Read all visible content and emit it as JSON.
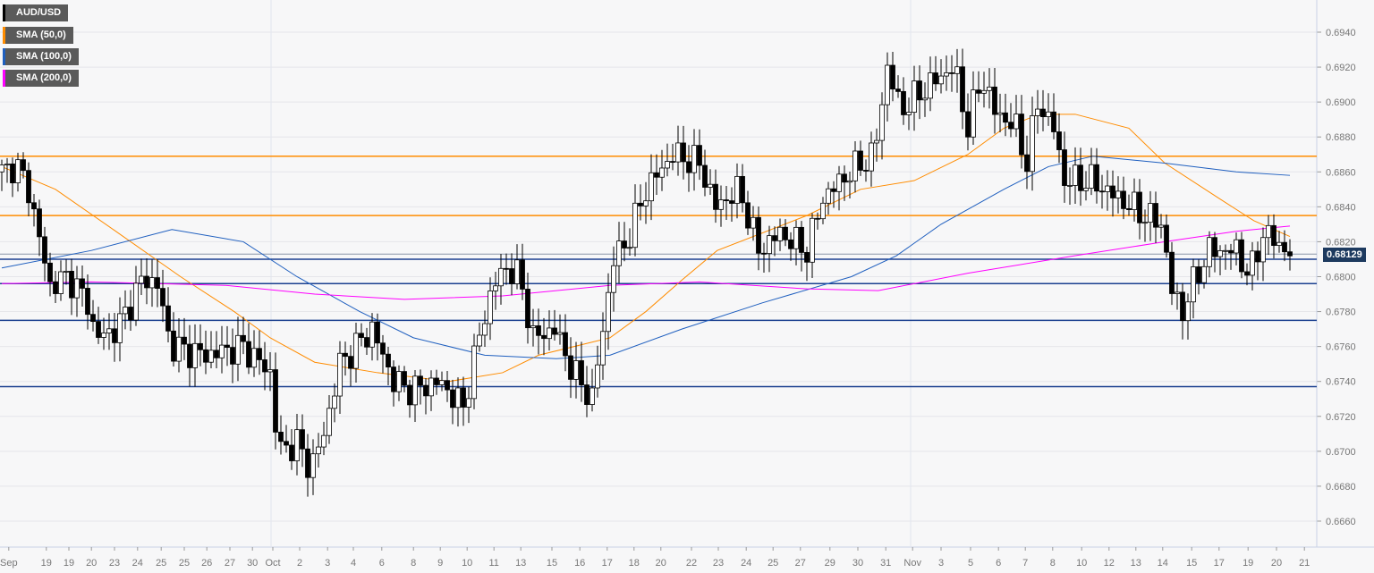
{
  "chart_data": {
    "type": "candlestick",
    "title": "AUD/USD",
    "legend": [
      {
        "label": "AUD/USD",
        "color": "#000000"
      },
      {
        "label": "SMA (50,0)",
        "color": "#ff8c00"
      },
      {
        "label": "SMA (100,0)",
        "color": "#1f5fbf"
      },
      {
        "label": "SMA (200,0)",
        "color": "#ff00ff"
      }
    ],
    "current_price": "0.68129",
    "current_price_value": 0.68129,
    "ylim": [
      0.6648,
      0.6958
    ],
    "xlim": [
      0,
      245
    ],
    "y_ticks": [
      "0.6660",
      "0.6680",
      "0.6700",
      "0.6720",
      "0.6740",
      "0.6760",
      "0.6780",
      "0.6800",
      "0.6820",
      "0.6840",
      "0.6860",
      "0.6880",
      "0.6900",
      "0.6920",
      "0.6940"
    ],
    "x_ticks": [
      [
        "Sep",
        1.3
      ],
      [
        "19",
        8.3
      ],
      [
        "19",
        12.5
      ],
      [
        "20",
        16.7
      ],
      [
        "23",
        21
      ],
      [
        "24",
        25.3
      ],
      [
        "25",
        29.7
      ],
      [
        "25",
        34
      ],
      [
        "26",
        38.2
      ],
      [
        "27",
        42.5
      ],
      [
        "30",
        46.7
      ],
      [
        "Oct",
        50.5
      ],
      [
        "2",
        55.5
      ],
      [
        "3",
        60.7
      ],
      [
        "4",
        65.5
      ],
      [
        "6",
        70.8
      ],
      [
        "8",
        76.7
      ],
      [
        "9",
        81.7
      ],
      [
        "10",
        86.7
      ],
      [
        "11",
        91.7
      ],
      [
        "13",
        96.7
      ],
      [
        "15",
        102.5
      ],
      [
        "16",
        107.7
      ],
      [
        "17",
        112.8
      ],
      [
        "18",
        117.8
      ],
      [
        "20",
        122.8
      ],
      [
        "22",
        128.5
      ],
      [
        "23",
        133.5
      ],
      [
        "24",
        138.7
      ],
      [
        "25",
        143.7
      ],
      [
        "27",
        148.8
      ],
      [
        "29",
        154.3
      ],
      [
        "30",
        159.5
      ],
      [
        "31",
        164.7
      ],
      [
        "Nov",
        169.7
      ],
      [
        "3",
        175
      ],
      [
        "5",
        180.5
      ],
      [
        "6",
        185.7
      ],
      [
        "7",
        190.7
      ],
      [
        "8",
        195.8
      ],
      [
        "10",
        201.2
      ],
      [
        "12",
        206.3
      ],
      [
        "13",
        211.3
      ],
      [
        "14",
        216.3
      ],
      [
        "15",
        221.7
      ],
      [
        "17",
        226.8
      ],
      [
        "19",
        232.2
      ],
      [
        "20",
        237.5
      ],
      [
        "21",
        242.7
      ]
    ],
    "horizontal_levels": [
      {
        "price": 0.6869,
        "color": "#ff8c00"
      },
      {
        "price": 0.6835,
        "color": "#ff8c00"
      },
      {
        "price": 0.681,
        "color": "#1a3f8f"
      },
      {
        "price": 0.6796,
        "color": "#1a3f8f"
      },
      {
        "price": 0.6775,
        "color": "#1a3f8f"
      },
      {
        "price": 0.6737,
        "color": "#1a3f8f"
      }
    ],
    "price_path": [
      [
        0.8,
        0.686
      ],
      [
        2.5,
        0.6865
      ],
      [
        5,
        0.685
      ],
      [
        7.5,
        0.6815
      ],
      [
        9,
        0.6795
      ],
      [
        12.5,
        0.68
      ],
      [
        16,
        0.6785
      ],
      [
        17.5,
        0.6765
      ],
      [
        21.5,
        0.677
      ],
      [
        26.5,
        0.68
      ],
      [
        29,
        0.6795
      ],
      [
        31.5,
        0.676
      ],
      [
        38,
        0.6755
      ],
      [
        45,
        0.676
      ],
      [
        50,
        0.6745
      ],
      [
        51.5,
        0.67
      ],
      [
        55,
        0.6705
      ],
      [
        57.5,
        0.669
      ],
      [
        60,
        0.671
      ],
      [
        63,
        0.675
      ],
      [
        69,
        0.677
      ],
      [
        73,
        0.674
      ],
      [
        76.5,
        0.6735
      ],
      [
        81.5,
        0.674
      ],
      [
        86,
        0.6725
      ],
      [
        88.5,
        0.676
      ],
      [
        91.5,
        0.6795
      ],
      [
        94,
        0.6805
      ],
      [
        96.5,
        0.68
      ],
      [
        99,
        0.6765
      ],
      [
        103,
        0.677
      ],
      [
        106.5,
        0.6745
      ],
      [
        110,
        0.673
      ],
      [
        111.5,
        0.676
      ],
      [
        114,
        0.681
      ],
      [
        116.5,
        0.682
      ],
      [
        120,
        0.685
      ],
      [
        125,
        0.687
      ],
      [
        130,
        0.6865
      ],
      [
        133,
        0.684
      ],
      [
        137.5,
        0.685
      ],
      [
        141,
        0.6815
      ],
      [
        145,
        0.6825
      ],
      [
        150,
        0.6815
      ],
      [
        153,
        0.6845
      ],
      [
        158,
        0.686
      ],
      [
        162.5,
        0.687
      ],
      [
        165,
        0.692
      ],
      [
        167.5,
        0.6895
      ],
      [
        171,
        0.6905
      ],
      [
        175,
        0.6915
      ],
      [
        177.5,
        0.692
      ],
      [
        180,
        0.6885
      ],
      [
        182.5,
        0.6915
      ],
      [
        185,
        0.6895
      ],
      [
        189,
        0.6885
      ],
      [
        191,
        0.6865
      ],
      [
        193,
        0.69
      ],
      [
        196,
        0.6885
      ],
      [
        198,
        0.6855
      ],
      [
        203,
        0.6855
      ],
      [
        208,
        0.6845
      ],
      [
        213,
        0.6835
      ],
      [
        216.5,
        0.683
      ],
      [
        217.5,
        0.6795
      ],
      [
        220,
        0.678
      ],
      [
        222.5,
        0.68
      ],
      [
        225,
        0.6815
      ],
      [
        230,
        0.6815
      ],
      [
        232.5,
        0.68
      ],
      [
        235,
        0.6825
      ],
      [
        237.5,
        0.682
      ],
      [
        240,
        0.6813
      ]
    ],
    "sma": [
      {
        "name": "SMA (50,0)",
        "color": "#ff8c00",
        "points": [
          [
            0,
            0.6863
          ],
          [
            10,
            0.685
          ],
          [
            21.7,
            0.6825
          ],
          [
            33.3,
            0.68
          ],
          [
            43.3,
            0.678
          ],
          [
            50,
            0.6765
          ],
          [
            58.3,
            0.6751
          ],
          [
            70,
            0.6745
          ],
          [
            83.3,
            0.674
          ],
          [
            93.3,
            0.6745
          ],
          [
            100,
            0.6755
          ],
          [
            113.3,
            0.6765
          ],
          [
            120,
            0.678
          ],
          [
            126.7,
            0.6798
          ],
          [
            133.3,
            0.6815
          ],
          [
            141.7,
            0.6825
          ],
          [
            150,
            0.6835
          ],
          [
            160,
            0.685
          ],
          [
            170,
            0.6855
          ],
          [
            180,
            0.687
          ],
          [
            186.7,
            0.6885
          ],
          [
            193.3,
            0.6893
          ],
          [
            200,
            0.6893
          ],
          [
            210,
            0.6885
          ],
          [
            216.7,
            0.6865
          ],
          [
            226.7,
            0.6845
          ],
          [
            233.3,
            0.6832
          ],
          [
            240,
            0.6823
          ]
        ]
      },
      {
        "name": "SMA (100,0)",
        "color": "#1f5fbf",
        "points": [
          [
            0,
            0.6805
          ],
          [
            16.7,
            0.6815
          ],
          [
            31.7,
            0.6827
          ],
          [
            45,
            0.682
          ],
          [
            55,
            0.68
          ],
          [
            66.7,
            0.678
          ],
          [
            76.7,
            0.6765
          ],
          [
            90,
            0.6755
          ],
          [
            103.3,
            0.6753
          ],
          [
            113.3,
            0.6755
          ],
          [
            126.7,
            0.677
          ],
          [
            141.7,
            0.6785
          ],
          [
            158.3,
            0.68
          ],
          [
            166.7,
            0.6812
          ],
          [
            175,
            0.683
          ],
          [
            186.7,
            0.685
          ],
          [
            195,
            0.6863
          ],
          [
            203.3,
            0.6869
          ],
          [
            216.7,
            0.6865
          ],
          [
            230,
            0.686
          ],
          [
            240,
            0.6858
          ]
        ]
      },
      {
        "name": "SMA (200,0)",
        "color": "#ff00ff",
        "points": [
          [
            0,
            0.6796
          ],
          [
            16.7,
            0.6797
          ],
          [
            41.7,
            0.6795
          ],
          [
            58.3,
            0.679
          ],
          [
            75,
            0.6787
          ],
          [
            93.3,
            0.6789
          ],
          [
            113.3,
            0.6795
          ],
          [
            130,
            0.6797
          ],
          [
            150,
            0.6793
          ],
          [
            163.3,
            0.6792
          ],
          [
            180,
            0.6802
          ],
          [
            200,
            0.6812
          ],
          [
            216.7,
            0.682
          ],
          [
            230,
            0.6826
          ],
          [
            240,
            0.6829
          ]
        ]
      }
    ]
  }
}
